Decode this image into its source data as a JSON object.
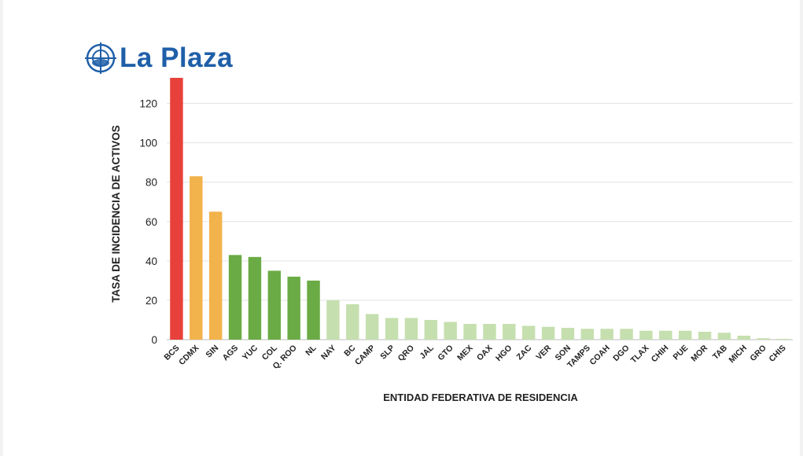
{
  "brand": {
    "name": "La Plaza",
    "icon": "crosshair-globe-icon",
    "color": "#1f5fa8"
  },
  "chart_data": {
    "type": "bar",
    "title": "",
    "xlabel": "ENTIDAD FEDERATIVA DE RESIDENCIA",
    "ylabel": "TASA DE INCIDENCIA DE ACTIVOS",
    "ylim": [
      0,
      135
    ],
    "yticks": [
      0,
      20,
      40,
      60,
      80,
      100,
      120
    ],
    "grid": true,
    "categories": [
      "BCS",
      "CDMX",
      "SIN",
      "AGS",
      "YUC",
      "COL",
      "Q. ROO",
      "NL",
      "NAY",
      "BC",
      "CAMP",
      "SLP",
      "QRO",
      "JAL",
      "GTO",
      "MEX",
      "OAX",
      "HGO",
      "ZAC",
      "VER",
      "SON",
      "TAMPS",
      "COAH",
      "DGO",
      "TLAX",
      "CHIH",
      "PUE",
      "MOR",
      "TAB",
      "MICH",
      "GRO",
      "CHIS"
    ],
    "values": [
      133,
      83,
      65,
      43,
      42,
      35,
      32,
      30,
      20,
      18,
      13,
      11,
      11,
      10,
      9,
      8,
      8,
      8,
      7,
      6.5,
      6,
      5.5,
      5.5,
      5.5,
      4.5,
      4.5,
      4.5,
      4,
      3.5,
      2,
      0.7,
      0.4
    ],
    "colors": [
      "#e8403a",
      "#f2b24c",
      "#f2b24c",
      "#6aab45",
      "#6aab45",
      "#6aab45",
      "#6aab45",
      "#6aab45",
      "#c5dfae",
      "#c5dfae",
      "#c5dfae",
      "#c5dfae",
      "#c5dfae",
      "#c5dfae",
      "#c5dfae",
      "#c5dfae",
      "#c5dfae",
      "#c5dfae",
      "#c5dfae",
      "#c5dfae",
      "#c5dfae",
      "#c5dfae",
      "#c5dfae",
      "#c5dfae",
      "#c5dfae",
      "#c5dfae",
      "#c5dfae",
      "#c5dfae",
      "#c5dfae",
      "#c5dfae",
      "#c5dfae",
      "#c5dfae"
    ]
  }
}
